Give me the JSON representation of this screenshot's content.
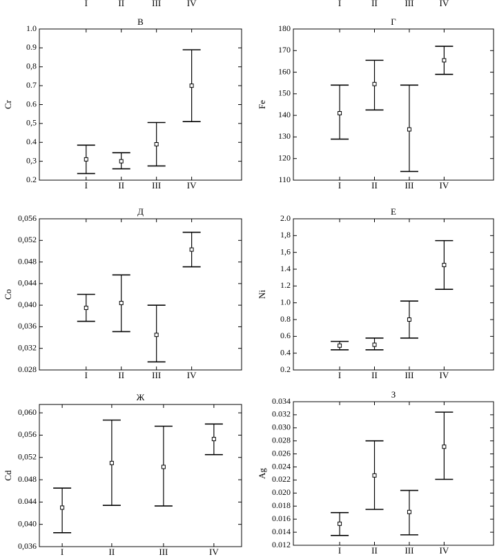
{
  "chart_data": [
    {
      "type": "errorbar",
      "categories": [
        "I",
        "II",
        "III",
        "IV"
      ]
    },
    {
      "type": "errorbar",
      "categories": [
        "I",
        "II",
        "III",
        "IV"
      ]
    },
    {
      "type": "errorbar",
      "title": "В",
      "y_label": "Cr",
      "categories": [
        "I",
        "II",
        "III",
        "IV"
      ],
      "values": [
        0.31,
        0.3,
        0.39,
        0.7
      ],
      "lower": [
        0.235,
        0.26,
        0.275,
        0.51
      ],
      "upper": [
        0.385,
        0.345,
        0.505,
        0.89
      ],
      "ylim": [
        0.2,
        1.0
      ],
      "yticks": [
        0.2,
        {
          "value": 0.3,
          "label": "0,3"
        },
        0.4,
        {
          "value": 0.5,
          "label": "0,5"
        },
        0.6,
        0.7,
        {
          "value": 0.8,
          "label": "0,8"
        },
        0.9,
        {
          "value": 1.0,
          "label": "1.0"
        }
      ],
      "color": "#000000"
    },
    {
      "type": "errorbar",
      "title": "Г",
      "y_label": "Fe",
      "categories": [
        "I",
        "II",
        "III",
        "IV"
      ],
      "values": [
        141,
        154.5,
        133.5,
        165.5
      ],
      "lower": [
        129,
        142.5,
        114,
        159
      ],
      "upper": [
        154,
        165.5,
        154,
        172
      ],
      "ylim": [
        110,
        180
      ],
      "yticks": [
        110,
        120,
        130,
        140,
        150,
        160,
        170,
        180
      ],
      "color": "#000000"
    },
    {
      "type": "errorbar",
      "title": "Д",
      "y_label": "Co",
      "categories": [
        "I",
        "II",
        "III",
        "IV"
      ],
      "values": [
        0.0395,
        0.0404,
        0.0345,
        0.0503
      ],
      "lower": [
        0.037,
        0.0351,
        0.0295,
        0.0471
      ],
      "upper": [
        0.042,
        0.0456,
        0.04,
        0.0535
      ],
      "ylim": [
        0.028,
        0.056
      ],
      "yticks": [
        0.028,
        {
          "value": 0.032,
          "label": "0,032"
        },
        {
          "value": 0.036,
          "label": "0,036"
        },
        {
          "value": 0.04,
          "label": "0,040"
        },
        {
          "value": 0.044,
          "label": "0,044"
        },
        0.048,
        {
          "value": 0.052,
          "label": "0,052"
        },
        {
          "value": 0.056,
          "label": "0,056"
        }
      ],
      "color": "#000000"
    },
    {
      "type": "errorbar",
      "title": "Е",
      "y_label": "Ni",
      "categories": [
        "I",
        "II",
        "III",
        "IV"
      ],
      "values": [
        0.49,
        0.5,
        0.8,
        1.45
      ],
      "lower": [
        0.44,
        0.44,
        0.58,
        1.16
      ],
      "upper": [
        0.54,
        0.58,
        1.02,
        1.74
      ],
      "ylim": [
        0.2,
        2.0
      ],
      "yticks": [
        0.2,
        0.4,
        0.6,
        0.8,
        {
          "value": 1.0,
          "label": "1.0"
        },
        1.2,
        1.4,
        {
          "value": 1.6,
          "label": "1,6"
        },
        {
          "value": 1.8,
          "label": "1,8"
        },
        {
          "value": 2.0,
          "label": "2.0"
        }
      ],
      "color": "#000000"
    },
    {
      "type": "errorbar",
      "title": "Ж",
      "y_label": "Cd",
      "categories": [
        "I",
        "II",
        "III",
        "IV"
      ],
      "values": [
        0.043,
        0.051,
        0.0503,
        0.0553
      ],
      "lower": [
        0.0385,
        0.0434,
        0.0433,
        0.0525
      ],
      "upper": [
        0.0465,
        0.0587,
        0.0576,
        0.058
      ],
      "ylim": [
        0.036,
        0.0615
      ],
      "yticks": [
        {
          "value": 0.036,
          "label": "0,036"
        },
        {
          "value": 0.04,
          "label": "0,040"
        },
        0.044,
        0.048,
        {
          "value": 0.052,
          "label": "0,052"
        },
        {
          "value": 0.056,
          "label": "0,056"
        },
        {
          "value": 0.06,
          "label": "0,060"
        }
      ],
      "color": "#000000"
    },
    {
      "type": "errorbar",
      "title": "З",
      "y_label": "Ag",
      "categories": [
        "I",
        "II",
        "III",
        "IV"
      ],
      "values": [
        0.0153,
        0.0227,
        0.0171,
        0.0271
      ],
      "lower": [
        0.0135,
        0.0175,
        0.0136,
        0.0221
      ],
      "upper": [
        0.017,
        0.028,
        0.0204,
        0.0324
      ],
      "ylim": [
        0.012,
        0.034
      ],
      "yticks": [
        0.012,
        0.014,
        0.016,
        0.018,
        {
          "value": 0.02,
          "label": "0.020"
        },
        0.022,
        0.024,
        0.026,
        0.028,
        {
          "value": 0.03,
          "label": "0.030"
        },
        0.032,
        0.034
      ],
      "color": "#000000"
    }
  ]
}
